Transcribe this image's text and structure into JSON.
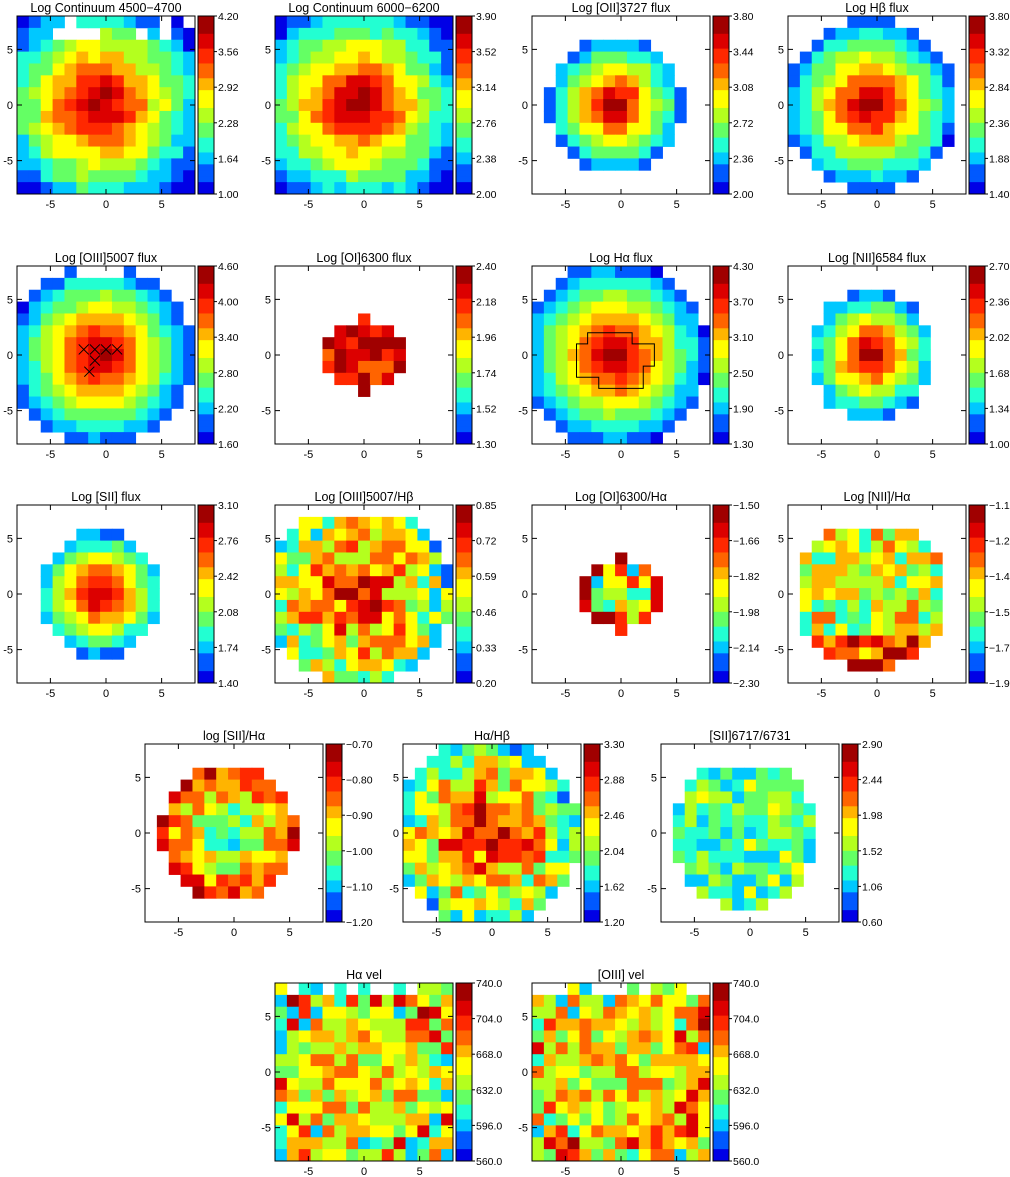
{
  "figure": {
    "x_ticks": [
      "-5",
      "0",
      "5"
    ],
    "y_ticks": [
      "5",
      "0",
      "-5"
    ]
  },
  "colormap": [
    "#0000e6",
    "#0059ff",
    "#00c8ff",
    "#22ffd2",
    "#64ff64",
    "#b4ff1e",
    "#ffff00",
    "#ffb400",
    "#ff6400",
    "#ff2800",
    "#dc0000",
    "#a00000"
  ],
  "chart_data": [
    {
      "type": "heatmap",
      "title": "Log Continuum 4500−4700",
      "colorbar": [
        "4.20",
        "3.56",
        "2.92",
        "2.28",
        "1.64",
        "1.00"
      ],
      "vmin": 1.0,
      "vmax": 4.2,
      "profile": "cont1"
    },
    {
      "type": "heatmap",
      "title": "Log Continuum 6000−6200",
      "colorbar": [
        "3.90",
        "3.52",
        "3.14",
        "2.76",
        "2.38",
        "2.00"
      ],
      "vmin": 2.0,
      "vmax": 3.9,
      "profile": "cont2"
    },
    {
      "type": "heatmap",
      "title": "Log [OII]3727 flux",
      "colorbar": [
        "3.80",
        "3.44",
        "3.08",
        "2.72",
        "2.36",
        "2.00"
      ],
      "vmin": 2.0,
      "vmax": 3.8,
      "profile": "oii"
    },
    {
      "type": "heatmap",
      "title": "Log Hβ flux",
      "colorbar": [
        "3.80",
        "3.32",
        "2.84",
        "2.36",
        "1.88",
        "1.40"
      ],
      "vmin": 1.4,
      "vmax": 3.8,
      "profile": "hb"
    },
    {
      "type": "heatmap",
      "title": "Log [OIII]5007 flux",
      "colorbar": [
        "4.60",
        "4.00",
        "3.40",
        "2.80",
        "2.20",
        "1.60"
      ],
      "vmin": 1.6,
      "vmax": 4.6,
      "profile": "oiii"
    },
    {
      "type": "heatmap",
      "title": "Log [OI]6300 flux",
      "colorbar": [
        "2.40",
        "2.18",
        "1.96",
        "1.74",
        "1.52",
        "1.30"
      ],
      "vmin": 1.3,
      "vmax": 2.4,
      "profile": "oi"
    },
    {
      "type": "heatmap",
      "title": "Log Hα flux",
      "colorbar": [
        "4.30",
        "3.70",
        "3.10",
        "2.50",
        "1.90",
        "1.30"
      ],
      "vmin": 1.3,
      "vmax": 4.3,
      "profile": "ha"
    },
    {
      "type": "heatmap",
      "title": "Log [NII]6584 flux",
      "colorbar": [
        "2.70",
        "2.36",
        "2.02",
        "1.68",
        "1.34",
        "1.00"
      ],
      "vmin": 1.0,
      "vmax": 2.7,
      "profile": "nii"
    },
    {
      "type": "heatmap",
      "title": "Log [SII] flux",
      "colorbar": [
        "3.10",
        "2.76",
        "2.42",
        "2.08",
        "1.74",
        "1.40"
      ],
      "vmin": 1.4,
      "vmax": 3.1,
      "profile": "sii"
    },
    {
      "type": "heatmap",
      "title": "Log [OIII]5007/Hβ",
      "colorbar": [
        "0.85",
        "0.72",
        "0.59",
        "0.46",
        "0.33",
        "0.20"
      ],
      "vmin": 0.2,
      "vmax": 0.85,
      "profile": "r_oiii"
    },
    {
      "type": "heatmap",
      "title": "Log [OI]6300/Hα",
      "colorbar": [
        "−1.50",
        "−1.66",
        "−1.82",
        "−1.98",
        "−2.14",
        "−2.30"
      ],
      "vmin": -2.3,
      "vmax": -1.5,
      "profile": "r_oi"
    },
    {
      "type": "heatmap",
      "title": "Log [NII]/Hα",
      "colorbar": [
        "−1.10",
        "−1.26",
        "−1.42",
        "−1.58",
        "−1.74",
        "−1.90"
      ],
      "vmin": -1.9,
      "vmax": -1.1,
      "profile": "r_nii"
    },
    {
      "type": "heatmap",
      "title": "log [SII]/Hα",
      "colorbar": [
        "−0.70",
        "−0.80",
        "−0.90",
        "−1.00",
        "−1.10",
        "−1.20"
      ],
      "vmin": -1.2,
      "vmax": -0.7,
      "profile": "r_sii"
    },
    {
      "type": "heatmap",
      "title": "Hα/Hβ",
      "colorbar": [
        "3.30",
        "2.88",
        "2.46",
        "2.04",
        "1.62",
        "1.20"
      ],
      "vmin": 1.2,
      "vmax": 3.3,
      "profile": "balmer"
    },
    {
      "type": "heatmap",
      "title": "[SII]6717/6731",
      "colorbar": [
        "2.90",
        "2.44",
        "1.98",
        "1.52",
        "1.06",
        "0.60"
      ],
      "vmin": 0.6,
      "vmax": 2.9,
      "profile": "sii_ratio"
    },
    {
      "type": "heatmap",
      "title": "Hα vel",
      "colorbar": [
        "740.0",
        "704.0",
        "668.0",
        "632.0",
        "596.0",
        "560.0"
      ],
      "vmin": 560,
      "vmax": 740,
      "profile": "vel1"
    },
    {
      "type": "heatmap",
      "title": "[OIII] vel",
      "colorbar": [
        "740.0",
        "704.0",
        "668.0",
        "632.0",
        "596.0",
        "560.0"
      ],
      "vmin": 560,
      "vmax": 740,
      "profile": "vel2"
    }
  ]
}
